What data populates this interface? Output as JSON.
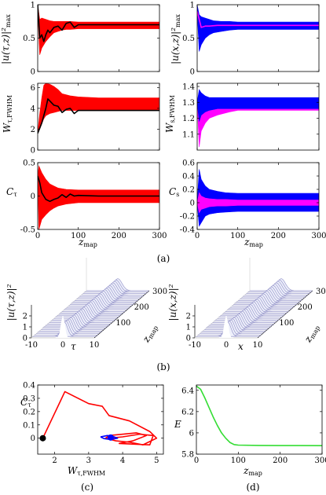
{
  "colors": {
    "red": "#ff0000",
    "blue": "#0000ff",
    "magenta": "#ff00ff",
    "black": "#000000",
    "green": "#33dd33",
    "surface": "#9999cc"
  },
  "panel_labels": {
    "a": "(a)",
    "b": "(b)",
    "c": "(c)",
    "d": "(d)"
  },
  "chart_data": [
    {
      "type": "line",
      "id": "a1",
      "ylabel": "|u(τ,z)|²max",
      "xlabel": "",
      "xlim": [
        0,
        300
      ],
      "ylim": [
        0,
        1
      ],
      "xticks": [
        0,
        100,
        200,
        300
      ],
      "yticks": [
        0,
        0.5,
        1
      ],
      "xticklabels": [],
      "yticklabels": [
        "0",
        "0.5",
        "1"
      ],
      "series": [
        {
          "color": "red",
          "style": "band",
          "x": [
            0,
            5,
            10,
            20,
            30,
            40,
            50,
            60,
            70,
            80,
            100,
            150,
            200,
            300
          ],
          "upper": [
            1.0,
            0.78,
            0.8,
            0.78,
            0.76,
            0.75,
            0.75,
            0.75,
            0.75,
            0.75,
            0.74,
            0.74,
            0.74,
            0.74
          ],
          "lower": [
            0.9,
            0.25,
            0.35,
            0.45,
            0.52,
            0.58,
            0.6,
            0.62,
            0.63,
            0.63,
            0.64,
            0.64,
            0.64,
            0.64
          ]
        },
        {
          "color": "black",
          "x": [
            0,
            5,
            10,
            15,
            20,
            25,
            30,
            40,
            50,
            60,
            70,
            80,
            90,
            100,
            150,
            200,
            300
          ],
          "y": [
            1.0,
            0.5,
            0.55,
            0.45,
            0.55,
            0.62,
            0.58,
            0.66,
            0.68,
            0.62,
            0.72,
            0.74,
            0.66,
            0.7,
            0.7,
            0.7,
            0.7
          ]
        }
      ]
    },
    {
      "type": "line",
      "id": "a2",
      "ylabel": "|u(x,z)|²max",
      "xlabel": "",
      "xlim": [
        0,
        300
      ],
      "ylim": [
        0,
        1
      ],
      "xticks": [
        0,
        100,
        200,
        300
      ],
      "yticks": [
        0,
        0.5,
        1
      ],
      "xticklabels": [],
      "yticklabels": [
        "0",
        "0.5",
        "1"
      ],
      "series": [
        {
          "color": "blue",
          "style": "band",
          "x": [
            0,
            5,
            10,
            20,
            30,
            40,
            60,
            80,
            100,
            150,
            200,
            300
          ],
          "upper": [
            1.0,
            0.85,
            0.82,
            0.8,
            0.78,
            0.76,
            0.75,
            0.75,
            0.74,
            0.74,
            0.74,
            0.74
          ],
          "lower": [
            0.9,
            0.3,
            0.4,
            0.5,
            0.55,
            0.58,
            0.6,
            0.62,
            0.63,
            0.63,
            0.63,
            0.63
          ]
        },
        {
          "color": "magenta",
          "x": [
            0,
            10,
            20,
            30,
            50,
            100,
            150,
            200,
            300
          ],
          "y": [
            0.9,
            0.66,
            0.68,
            0.68,
            0.69,
            0.69,
            0.69,
            0.69,
            0.69
          ]
        }
      ]
    },
    {
      "type": "line",
      "id": "a3",
      "ylabel": "Wτ,FWHM",
      "xlabel": "",
      "xlim": [
        0,
        300
      ],
      "ylim": [
        0,
        6.4
      ],
      "xticks": [
        0,
        100,
        200,
        300
      ],
      "yticks": [
        0,
        2,
        4,
        6
      ],
      "xticklabels": [],
      "yticklabels": [
        "0",
        "2",
        "4",
        "6"
      ],
      "series": [
        {
          "color": "red",
          "style": "band",
          "x": [
            0,
            5,
            10,
            15,
            20,
            30,
            40,
            50,
            60,
            80,
            100,
            150,
            200,
            300
          ],
          "upper": [
            1.6,
            3.5,
            5.0,
            6.2,
            6.4,
            6.3,
            6.1,
            5.8,
            5.4,
            5.2,
            5.1,
            5.0,
            5.0,
            5.0
          ],
          "lower": [
            1.6,
            2.0,
            2.5,
            3.0,
            3.3,
            3.5,
            3.6,
            3.7,
            3.8,
            3.8,
            3.8,
            3.8,
            3.8,
            3.8
          ]
        },
        {
          "color": "black",
          "x": [
            0,
            10,
            20,
            25,
            30,
            40,
            50,
            60,
            70,
            80,
            90,
            100,
            150,
            200,
            300
          ],
          "y": [
            1.6,
            2.6,
            4.0,
            4.9,
            4.7,
            4.3,
            4.2,
            3.6,
            3.9,
            4.0,
            3.5,
            3.8,
            3.8,
            3.8,
            3.8
          ]
        }
      ]
    },
    {
      "type": "line",
      "id": "a4",
      "ylabel": "Ws,FWHM",
      "xlabel": "",
      "xlim": [
        0,
        300
      ],
      "ylim": [
        1.0,
        1.42
      ],
      "xticks": [
        0,
        100,
        200,
        300
      ],
      "yticks": [
        1.1,
        1.2,
        1.3,
        1.4
      ],
      "xticklabels": [],
      "yticklabels": [
        "1.1",
        "1.2",
        "1.3",
        "1.4"
      ],
      "series": [
        {
          "color": "magenta",
          "style": "band",
          "x": [
            0,
            5,
            10,
            20,
            30,
            50,
            80,
            100,
            150,
            200,
            300
          ],
          "upper": [
            1.3,
            1.36,
            1.34,
            1.33,
            1.32,
            1.32,
            1.32,
            1.32,
            1.32,
            1.32,
            1.32
          ],
          "lower": [
            1.3,
            1.02,
            1.12,
            1.17,
            1.2,
            1.22,
            1.24,
            1.25,
            1.25,
            1.25,
            1.25
          ]
        },
        {
          "color": "blue",
          "style": "band",
          "x": [
            0,
            5,
            10,
            20,
            30,
            50,
            80,
            100,
            150,
            200,
            300
          ],
          "upper": [
            1.3,
            1.38,
            1.36,
            1.34,
            1.33,
            1.33,
            1.33,
            1.33,
            1.33,
            1.33,
            1.33
          ],
          "lower": [
            1.3,
            1.18,
            1.22,
            1.24,
            1.25,
            1.26,
            1.26,
            1.26,
            1.26,
            1.26,
            1.26
          ]
        }
      ]
    },
    {
      "type": "line",
      "id": "a5",
      "ylabel": "Cτ",
      "xlabel": "zmap",
      "xlim": [
        0,
        300
      ],
      "ylim": [
        -0.5,
        0.5
      ],
      "xticks": [
        0,
        100,
        200,
        300
      ],
      "yticks": [
        -0.5,
        0,
        0.5
      ],
      "xticklabels": [
        "0",
        "100",
        "200",
        "300"
      ],
      "yticklabels": [
        "-0.5",
        "0",
        "0.5"
      ],
      "series": [
        {
          "color": "red",
          "style": "band",
          "x": [
            0,
            3,
            10,
            20,
            30,
            40,
            50,
            70,
            100,
            150,
            200,
            300
          ],
          "upper": [
            0.3,
            0.45,
            0.35,
            0.25,
            0.18,
            0.15,
            0.12,
            0.1,
            0.09,
            0.09,
            0.09,
            0.09
          ],
          "lower": [
            0.3,
            -0.5,
            -0.35,
            -0.28,
            -0.22,
            -0.18,
            -0.15,
            -0.12,
            -0.1,
            -0.1,
            -0.1,
            -0.1
          ]
        },
        {
          "color": "black",
          "x": [
            0,
            5,
            10,
            20,
            30,
            40,
            50,
            60,
            70,
            80,
            90,
            100,
            150,
            200,
            300
          ],
          "y": [
            0.3,
            0.2,
            0.05,
            -0.05,
            -0.08,
            -0.05,
            -0.03,
            0.02,
            -0.02,
            0.03,
            0.0,
            0.01,
            0.0,
            0.0,
            0.0
          ]
        }
      ]
    },
    {
      "type": "line",
      "id": "a6",
      "ylabel": "Cs",
      "xlabel": "zmap",
      "xlim": [
        0,
        300
      ],
      "ylim": [
        -0.4,
        0.6
      ],
      "xticks": [
        0,
        100,
        200,
        300
      ],
      "yticks": [
        -0.4,
        -0.2,
        0,
        0.2,
        0.4,
        0.6
      ],
      "xticklabels": [
        "0",
        "100",
        "200",
        "300"
      ],
      "yticklabels": [
        "-0.4",
        "-0.2",
        "0",
        "0.2",
        "0.4",
        "0.6"
      ],
      "series": [
        {
          "color": "blue",
          "style": "band",
          "x": [
            0,
            5,
            10,
            20,
            30,
            50,
            70,
            100,
            150,
            200,
            300
          ],
          "upper": [
            0.0,
            0.5,
            0.35,
            0.25,
            0.2,
            0.17,
            0.15,
            0.14,
            0.14,
            0.14,
            0.14
          ],
          "lower": [
            0.0,
            -0.35,
            -0.3,
            -0.2,
            -0.17,
            -0.15,
            -0.14,
            -0.13,
            -0.13,
            -0.13,
            -0.13
          ]
        },
        {
          "color": "magenta",
          "style": "band",
          "x": [
            0,
            5,
            10,
            20,
            30,
            50,
            70,
            100,
            150,
            200,
            300
          ],
          "upper": [
            0.0,
            0.15,
            0.1,
            0.07,
            0.06,
            0.05,
            0.05,
            0.04,
            0.04,
            0.04,
            0.04
          ],
          "lower": [
            0.0,
            -0.15,
            -0.1,
            -0.08,
            -0.06,
            -0.05,
            -0.05,
            -0.04,
            -0.04,
            -0.04,
            -0.04
          ]
        }
      ]
    },
    {
      "type": "surface",
      "id": "b1",
      "zlabel": "|u(τ,z)|²",
      "xlabel": "τ",
      "ylabel": "zmap",
      "xlim": [
        -10,
        10
      ],
      "ylim": [
        0,
        300
      ],
      "zlim": [
        0,
        2
      ],
      "xticks": [
        -10,
        0,
        10
      ],
      "yticks": [
        100,
        200,
        300
      ],
      "zticks": [
        0,
        1,
        2
      ],
      "xticklabels": [
        "-10",
        "0",
        "10"
      ],
      "yticklabels": [
        "100",
        "200",
        "300"
      ],
      "zticklabels": [
        "0",
        "1",
        "2"
      ]
    },
    {
      "type": "surface",
      "id": "b2",
      "zlabel": "|u(x,z)|²",
      "xlabel": "x",
      "ylabel": "zmap",
      "xlim": [
        -10,
        10
      ],
      "ylim": [
        0,
        300
      ],
      "zlim": [
        0,
        2
      ],
      "xticks": [
        -10,
        0,
        10
      ],
      "yticks": [
        100,
        200,
        300
      ],
      "zticks": [
        0,
        1,
        2
      ],
      "xticklabels": [
        "-10",
        "0",
        "10"
      ],
      "yticklabels": [
        "100",
        "200",
        "300"
      ],
      "zticklabels": [
        "0",
        "1",
        "2"
      ]
    },
    {
      "type": "line",
      "id": "c",
      "ylabel": "Cτ",
      "xlabel": "Wτ,FWHM",
      "xlim": [
        1.5,
        5.2
      ],
      "ylim": [
        -0.12,
        0.4
      ],
      "xticks": [
        2,
        3,
        4,
        5
      ],
      "yticks": [
        0,
        0.1,
        0.2,
        0.3,
        0.4
      ],
      "xticklabels": [
        "2",
        "3",
        "4",
        "5"
      ],
      "yticklabels": [
        "0",
        "0.1",
        "0.2",
        "0.3",
        "0.4"
      ],
      "series": [
        {
          "color": "red",
          "x": [
            1.65,
            2.3,
            3.0,
            3.4,
            3.6,
            4.2,
            4.8,
            5.0,
            4.6,
            4.2,
            3.8,
            3.5,
            3.6,
            4.4,
            4.7,
            4.3,
            3.9,
            4.8,
            4.9,
            4.5,
            4.0,
            3.6
          ],
          "y": [
            0.0,
            0.35,
            0.26,
            0.24,
            0.17,
            0.13,
            0.05,
            0.0,
            -0.05,
            -0.03,
            -0.02,
            0.0,
            0.02,
            0.04,
            0.02,
            -0.02,
            -0.04,
            -0.05,
            0.02,
            0.03,
            0.01,
            0.0
          ]
        },
        {
          "color": "blue",
          "x": [
            3.35,
            3.45,
            3.55,
            3.65,
            3.75,
            3.85,
            3.75,
            3.6,
            3.45,
            3.35
          ],
          "y": [
            0.01,
            0.015,
            0.02,
            0.015,
            0.01,
            0.0,
            -0.005,
            -0.008,
            -0.003,
            0.01
          ]
        }
      ],
      "markers": [
        {
          "x": 1.65,
          "y": 0.0,
          "color": "black"
        },
        {
          "x": 3.65,
          "y": 0.005,
          "color": "blue"
        }
      ]
    },
    {
      "type": "line",
      "id": "d",
      "ylabel": "E",
      "xlabel": "zmap",
      "xlim": [
        0,
        300
      ],
      "ylim": [
        5.8,
        6.45
      ],
      "xticks": [
        0,
        100,
        200,
        300
      ],
      "yticks": [
        5.8,
        6.0,
        6.2,
        6.4
      ],
      "xticklabels": [
        "0",
        "100",
        "200",
        "300"
      ],
      "yticklabels": [
        "5.8",
        "6",
        "6.2",
        "6.4"
      ],
      "series": [
        {
          "color": "green",
          "x": [
            0,
            10,
            20,
            30,
            40,
            50,
            60,
            70,
            80,
            90,
            100,
            150,
            200,
            300
          ],
          "y": [
            6.44,
            6.41,
            6.33,
            6.24,
            6.15,
            6.07,
            6.0,
            5.95,
            5.91,
            5.89,
            5.885,
            5.882,
            5.881,
            5.88
          ]
        }
      ]
    }
  ]
}
